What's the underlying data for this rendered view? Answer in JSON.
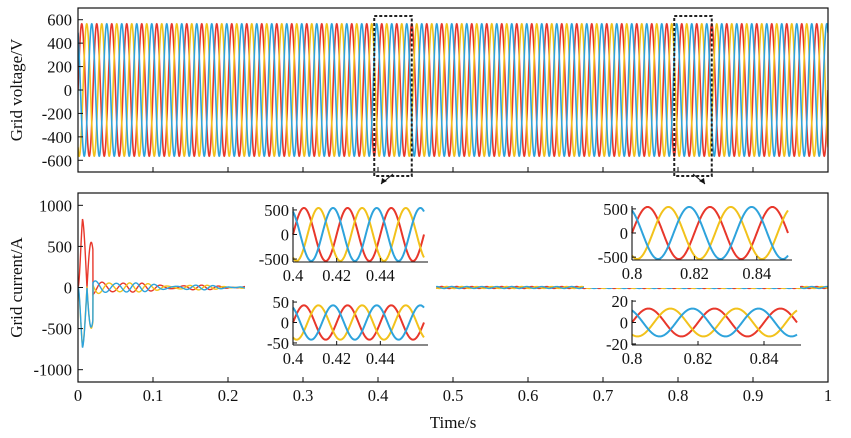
{
  "figure": {
    "xlabel": "Time/s",
    "x_ticks": [
      "0",
      "0.1",
      "0.2",
      "0.3",
      "0.4",
      "0.5",
      "0.6",
      "0.7",
      "0.8",
      "0.9",
      "1"
    ]
  },
  "colors": {
    "phase_a": "#e8372b",
    "phase_b": "#f2c21b",
    "phase_c": "#2ea3dc",
    "axis": "#111111",
    "zoom_box": "#222222"
  },
  "chart_data": [
    {
      "id": "voltage",
      "type": "line",
      "ylabel": "Grid voltage/V",
      "xlim": [
        0,
        1
      ],
      "ylim": [
        -700,
        700
      ],
      "y_ticks": [
        "600",
        "400",
        "200",
        "0",
        "-200",
        "-400",
        "-600"
      ],
      "y_tick_values": [
        600,
        400,
        200,
        0,
        -200,
        -400,
        -600
      ],
      "frequency_hz": 50,
      "series": [
        {
          "phase_deg": 0,
          "amplitude": 565
        },
        {
          "phase_deg": -120,
          "amplitude": 565
        },
        {
          "phase_deg": 120,
          "amplitude": 565
        }
      ],
      "zoom_regions": [
        [
          0.395,
          0.445
        ],
        [
          0.795,
          0.845
        ]
      ]
    },
    {
      "id": "current",
      "type": "line",
      "ylabel": "Grid current/A",
      "xlim": [
        0,
        1
      ],
      "ylim": [
        -1150,
        1150
      ],
      "y_ticks": [
        "1000",
        "500",
        "0",
        "-500",
        "-1000"
      ],
      "y_tick_values": [
        1000,
        500,
        0,
        -500,
        -1000
      ],
      "frequency_hz": 50,
      "startup_transient": {
        "peak": [
          1000,
          -880,
          -880
        ],
        "decay_to_steady_by_s": 0.55
      },
      "steady_amplitude": 12,
      "series": [
        {
          "phase_deg": 0
        },
        {
          "phase_deg": -120
        },
        {
          "phase_deg": 120
        }
      ]
    },
    {
      "id": "inset-voltage-0.4",
      "type": "line",
      "xlim": [
        0.4,
        0.46
      ],
      "ylim": [
        -560,
        560
      ],
      "x_ticks": [
        "0.4",
        "0.42",
        "0.44"
      ],
      "x_tick_values": [
        0.4,
        0.42,
        0.44
      ],
      "y_ticks": [
        "500",
        "0",
        "-500"
      ],
      "y_tick_values": [
        500,
        0,
        -500
      ],
      "amplitude": 540,
      "frequency_hz": 50
    },
    {
      "id": "inset-current-0.4",
      "type": "line",
      "xlim": [
        0.4,
        0.46
      ],
      "ylim": [
        -55,
        55
      ],
      "x_ticks": [
        "0.4",
        "0.42",
        "0.44"
      ],
      "x_tick_values": [
        0.4,
        0.42,
        0.44
      ],
      "y_ticks": [
        "50",
        "0",
        "-50"
      ],
      "y_tick_values": [
        50,
        0,
        -50
      ],
      "amplitude": 42,
      "frequency_hz": 50
    },
    {
      "id": "inset-voltage-0.8",
      "type": "line",
      "xlim": [
        0.8,
        0.85
      ],
      "ylim": [
        -560,
        560
      ],
      "x_ticks": [
        "0.8",
        "0.82",
        "0.84"
      ],
      "x_tick_values": [
        0.8,
        0.82,
        0.84
      ],
      "y_ticks": [
        "500",
        "0",
        "-500"
      ],
      "y_tick_values": [
        500,
        0,
        -500
      ],
      "amplitude": 540,
      "frequency_hz": 50
    },
    {
      "id": "inset-current-0.8",
      "type": "line",
      "xlim": [
        0.8,
        0.85
      ],
      "ylim": [
        -21,
        21
      ],
      "x_ticks": [
        "0.8",
        "0.82",
        "0.84"
      ],
      "x_tick_values": [
        0.8,
        0.82,
        0.84
      ],
      "y_ticks": [
        "20",
        "0",
        "-20"
      ],
      "y_tick_values": [
        20,
        0,
        -20
      ],
      "amplitude": 13,
      "frequency_hz": 50
    }
  ]
}
